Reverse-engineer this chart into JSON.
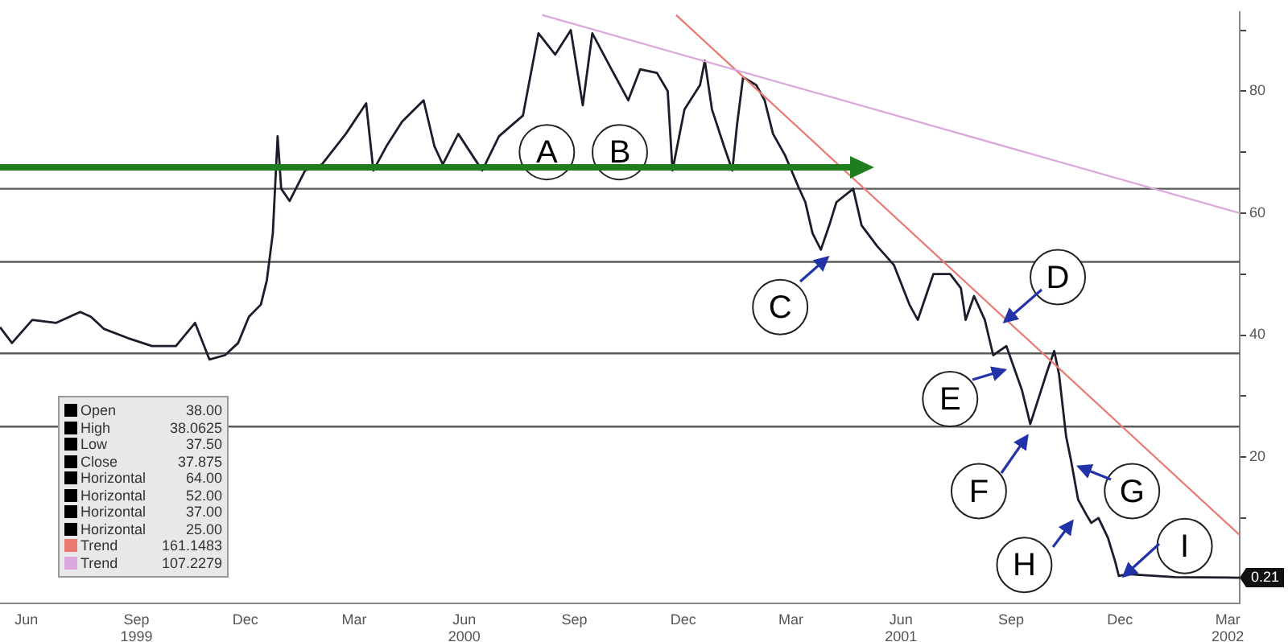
{
  "chart_data": {
    "type": "line",
    "marker": "none",
    "line_style": "solid",
    "legend": false,
    "grid": false,
    "xlim": [
      "1999-05-10",
      "2002-03-11"
    ],
    "ylim": [
      -4,
      93
    ],
    "xticks": [
      {
        "value": "1999-06-01",
        "label": "Jun"
      },
      {
        "value": "1999-09-01",
        "label": "Sep\n1999"
      },
      {
        "value": "1999-12-01",
        "label": "Dec"
      },
      {
        "value": "2000-03-01",
        "label": "Mar"
      },
      {
        "value": "2000-06-01",
        "label": "Jun\n2000"
      },
      {
        "value": "2000-09-01",
        "label": "Sep"
      },
      {
        "value": "2000-12-01",
        "label": "Dec"
      },
      {
        "value": "2001-03-01",
        "label": "Mar"
      },
      {
        "value": "2001-06-01",
        "label": "Jun\n2001"
      },
      {
        "value": "2001-09-01",
        "label": "Sep"
      },
      {
        "value": "2001-12-01",
        "label": "Dec"
      },
      {
        "value": "2002-03-01",
        "label": "Mar\n2002"
      }
    ],
    "yticks": [
      {
        "value": 10,
        "label": null
      },
      20,
      {
        "value": 30,
        "label": null
      },
      40,
      {
        "value": 50,
        "label": null
      },
      60,
      {
        "value": 70,
        "label": null
      },
      80,
      {
        "value": 90,
        "label": null
      }
    ],
    "x": [
      "1999-05-10",
      "1999-05-20",
      "1999-06-06",
      "1999-06-26",
      "1999-07-16",
      "1999-07-25",
      "1999-08-05",
      "1999-08-25",
      "1999-09-14",
      "1999-10-04",
      "1999-10-20",
      "1999-11-01",
      "1999-11-14",
      "1999-11-25",
      "1999-12-04",
      "1999-12-14",
      "1999-12-19",
      "1999-12-24",
      "1999-12-28",
      "1999-12-31",
      "2000-01-07",
      "2000-01-20",
      "2000-02-03",
      "2000-02-23",
      "2000-03-11",
      "2000-03-17",
      "2000-03-28",
      "2000-04-10",
      "2000-04-28",
      "2000-05-07",
      "2000-05-14",
      "2000-05-27",
      "2000-06-16",
      "2000-06-30",
      "2000-07-20",
      "2000-08-02",
      "2000-08-16",
      "2000-08-29",
      "2000-09-08",
      "2000-09-16",
      "2000-10-02",
      "2000-10-16",
      "2000-10-26",
      "2000-11-09",
      "2000-11-18",
      "2000-11-22",
      "2000-12-02",
      "2000-12-15",
      "2000-12-19",
      "2000-12-25",
      "2001-01-04",
      "2001-01-11",
      "2001-01-15",
      "2001-01-20",
      "2001-01-31",
      "2001-02-07",
      "2001-02-14",
      "2001-02-24",
      "2001-03-07",
      "2001-03-13",
      "2001-03-19",
      "2001-03-26",
      "2001-04-02",
      "2001-04-08",
      "2001-04-22",
      "2001-04-29",
      "2001-05-12",
      "2001-05-26",
      "2001-06-08",
      "2001-06-15",
      "2001-06-28",
      "2001-07-12",
      "2001-07-21",
      "2001-07-25",
      "2001-08-01",
      "2001-08-10",
      "2001-08-13",
      "2001-08-17",
      "2001-08-28",
      "2001-09-10",
      "2001-09-17",
      "2001-09-24",
      "2001-10-01",
      "2001-10-07",
      "2001-10-11",
      "2001-10-17",
      "2001-10-21",
      "2001-10-27",
      "2001-11-03",
      "2001-11-07",
      "2001-11-13",
      "2001-11-21",
      "2001-11-27",
      "2001-11-30",
      "2001-12-07",
      "2002-01-16",
      "2002-03-11"
    ],
    "series": [
      {
        "color": "#1c1c2c",
        "values": [
          41.3,
          38.7,
          42.5,
          42,
          43.8,
          43,
          41,
          39.5,
          38.2,
          38.2,
          42,
          36,
          36.7,
          38.7,
          43,
          45,
          49,
          56.7,
          72.6,
          64,
          62,
          67,
          68,
          73,
          78,
          67,
          71,
          75,
          78.5,
          71,
          68,
          73,
          67,
          72.6,
          76,
          89.5,
          86,
          90,
          77.7,
          89.5,
          83.6,
          78.5,
          83.6,
          83,
          80,
          67,
          77,
          81,
          85,
          77,
          71,
          67,
          74.6,
          82.3,
          81,
          78.5,
          73,
          69.5,
          64.4,
          61.8,
          56.7,
          54,
          58,
          61.8,
          64,
          58,
          54.6,
          51.5,
          45,
          42.5,
          50,
          50,
          47.7,
          42.5,
          46.4,
          42.5,
          40,
          36.7,
          38.2,
          31,
          25.4,
          29.7,
          34,
          37.4,
          33.6,
          23.3,
          19.5,
          13,
          10.5,
          9.2,
          10,
          6.7,
          2.8,
          0.5,
          0.8,
          0.3,
          0.21
        ]
      },
      {
        "type": "line",
        "color": "#e87a72",
        "x": [
          "2000-11-25",
          "2002-03-11"
        ],
        "values": [
          92.5,
          7.2
        ]
      },
      {
        "type": "line",
        "color": "#dba6dc",
        "x": [
          "2000-08-05",
          "2002-03-11"
        ],
        "values": [
          92.5,
          60
        ]
      }
    ],
    "ref_lines": [
      {
        "axis": "y",
        "value": 64,
        "color": "#5a5a5a"
      },
      {
        "axis": "y",
        "value": 52,
        "color": "#5a5a5a"
      },
      {
        "axis": "y",
        "value": 37,
        "color": "#5a5a5a"
      },
      {
        "axis": "y",
        "value": 25,
        "color": "#5a5a5a"
      }
    ],
    "annotations": [
      {
        "text": "A",
        "x": "2000-08-09",
        "y": 70
      },
      {
        "text": "B",
        "x": "2000-10-09",
        "y": 70
      },
      {
        "text": "C",
        "x": "2001-02-20",
        "y": 44.6
      },
      {
        "text": "D",
        "x": "2001-10-10",
        "y": 49.5
      },
      {
        "text": "E",
        "x": "2001-07-12",
        "y": 29.5
      },
      {
        "text": "F",
        "x": "2001-08-05",
        "y": 14.4
      },
      {
        "text": "G",
        "x": "2001-12-11",
        "y": 14.4
      },
      {
        "text": "H",
        "x": "2001-09-12",
        "y": 2.3
      },
      {
        "text": "I",
        "x": "2002-01-24",
        "y": 5.4
      },
      {
        "text": "0.21",
        "x": "2002-03-11",
        "y": 0.21
      },
      "Open 38.00",
      "High 38.0625",
      "Low 37.50",
      "Close 37.875",
      "Horizontal 64.00",
      "Horizontal 52.00",
      "Horizontal 37.00",
      "Horizontal 25.00",
      "Trend 161.1483",
      "Trend 107.2279"
    ]
  }
}
